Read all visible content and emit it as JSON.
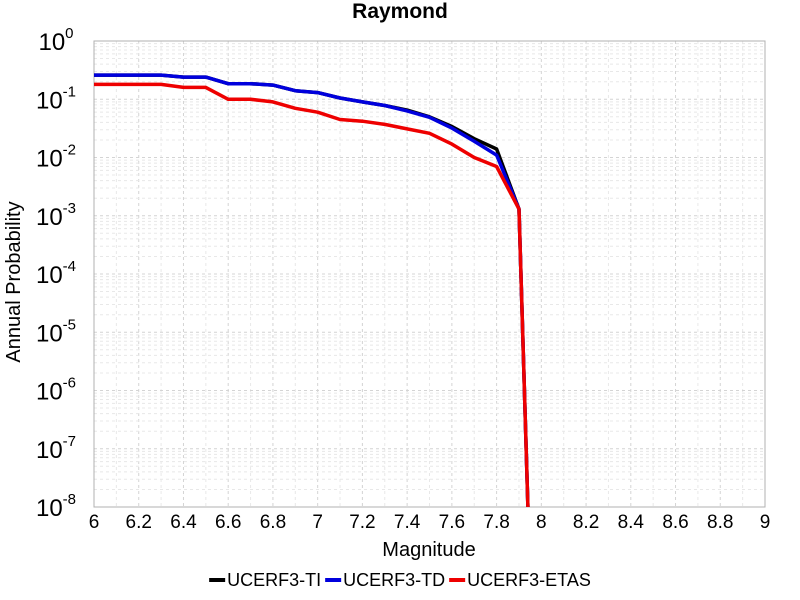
{
  "chart_data": {
    "type": "line",
    "title": "Raymond",
    "xlabel": "Magnitude",
    "ylabel": "Annual Probability",
    "xlim": [
      6,
      9
    ],
    "ylim": [
      1e-08,
      1
    ],
    "yscale": "log",
    "grid": true,
    "legend_position": "bottom",
    "x_ticks": [
      "6",
      "6.2",
      "6.4",
      "6.6",
      "6.8",
      "7",
      "7.2",
      "7.4",
      "7.6",
      "7.8",
      "8",
      "8.2",
      "8.4",
      "8.6",
      "8.8",
      "9"
    ],
    "y_ticks": [
      {
        "base": "10",
        "exp": "0"
      },
      {
        "base": "10",
        "exp": "-1"
      },
      {
        "base": "10",
        "exp": "-2"
      },
      {
        "base": "10",
        "exp": "-3"
      },
      {
        "base": "10",
        "exp": "-4"
      },
      {
        "base": "10",
        "exp": "-5"
      },
      {
        "base": "10",
        "exp": "-6"
      },
      {
        "base": "10",
        "exp": "-7"
      },
      {
        "base": "10",
        "exp": "-8"
      }
    ],
    "x": [
      6.0,
      6.1,
      6.2,
      6.3,
      6.4,
      6.5,
      6.6,
      6.7,
      6.8,
      6.9,
      7.0,
      7.1,
      7.2,
      7.3,
      7.4,
      7.5,
      7.6,
      7.7,
      7.8,
      7.9,
      7.94
    ],
    "series": [
      {
        "name": "UCERF3-TI",
        "color": "#000000",
        "values": [
          0.26,
          0.26,
          0.26,
          0.26,
          0.24,
          0.24,
          0.185,
          0.185,
          0.175,
          0.14,
          0.13,
          0.105,
          0.09,
          0.078,
          0.065,
          0.05,
          0.034,
          0.021,
          0.014,
          0.0013,
          1e-08
        ]
      },
      {
        "name": "UCERF3-TD",
        "color": "#0000dd",
        "values": [
          0.26,
          0.26,
          0.26,
          0.26,
          0.24,
          0.24,
          0.185,
          0.185,
          0.175,
          0.14,
          0.13,
          0.105,
          0.09,
          0.078,
          0.063,
          0.049,
          0.032,
          0.019,
          0.011,
          0.0013,
          1e-08
        ]
      },
      {
        "name": "UCERF3-ETAS",
        "color": "#ee0000",
        "values": [
          0.18,
          0.18,
          0.18,
          0.18,
          0.16,
          0.16,
          0.1,
          0.1,
          0.09,
          0.07,
          0.06,
          0.045,
          0.042,
          0.037,
          0.031,
          0.026,
          0.017,
          0.01,
          0.007,
          0.0013,
          1e-08
        ]
      }
    ]
  }
}
